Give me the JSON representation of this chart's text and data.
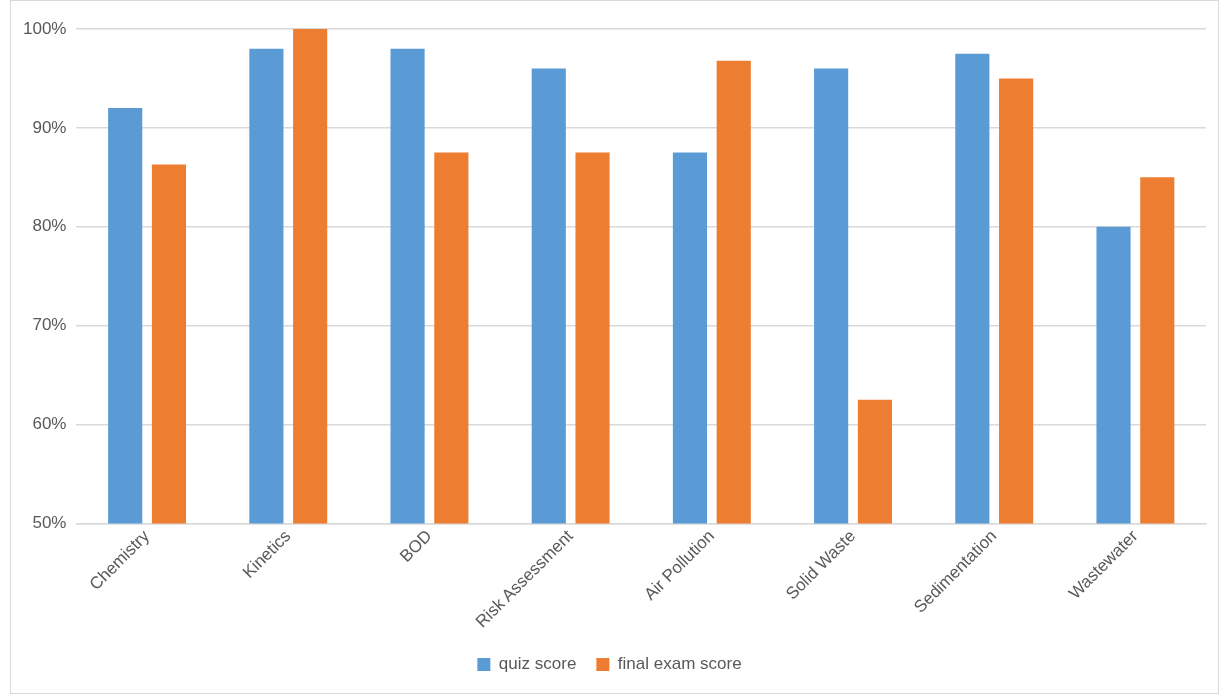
{
  "chart_data": {
    "type": "bar",
    "categories": [
      "Chemistry",
      "Kinetics",
      "BOD",
      "Risk Assessment",
      "Air Pollution",
      "Solid Waste",
      "Sedimentation",
      "Wastewater"
    ],
    "series": [
      {
        "name": "quiz score",
        "color": "#5b9bd5",
        "values": [
          92,
          98,
          98,
          96,
          87.5,
          96,
          97.5,
          80
        ]
      },
      {
        "name": "final exam score",
        "color": "#ed7d31",
        "values": [
          86.3,
          100,
          87.5,
          87.5,
          96.8,
          62.5,
          95,
          85
        ]
      }
    ],
    "ylim": [
      50,
      100
    ],
    "yticks": [
      {
        "value": 50,
        "label": "50%"
      },
      {
        "value": 60,
        "label": "60%"
      },
      {
        "value": 70,
        "label": "70%"
      },
      {
        "value": 80,
        "label": "80%"
      },
      {
        "value": 90,
        "label": "90%"
      },
      {
        "value": 100,
        "label": "100%"
      }
    ],
    "grid": "y",
    "legend": "bottom"
  }
}
